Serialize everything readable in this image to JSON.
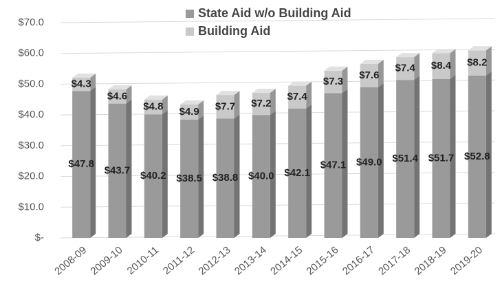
{
  "chart_data": {
    "type": "bar",
    "stacked": true,
    "categories": [
      "2008-09",
      "2009-10",
      "2010-11",
      "2011-12",
      "2012-13",
      "2013-14",
      "2014-15",
      "2015-16",
      "2016-17",
      "2017-18",
      "2018-19",
      "2019-20"
    ],
    "series": [
      {
        "name": "State Aid w/o Building Aid",
        "color": "#9a9a9a",
        "values": [
          47.8,
          43.7,
          40.2,
          38.5,
          38.8,
          40.0,
          42.1,
          47.1,
          49.0,
          51.4,
          51.7,
          52.8
        ],
        "value_labels": [
          "$47.8",
          "$43.7",
          "$40.2",
          "$38.5",
          "$38.8",
          "$40.0",
          "$42.1",
          "$47.1",
          "$49.0",
          "$51.4",
          "$51.7",
          "$52.8"
        ]
      },
      {
        "name": "Building Aid",
        "color": "#c9c9c9",
        "values": [
          4.3,
          4.6,
          4.8,
          4.9,
          7.7,
          7.2,
          7.4,
          7.3,
          7.6,
          7.4,
          8.4,
          8.2
        ],
        "value_labels": [
          "$4.3",
          "$4.6",
          "$4.8",
          "$4.9",
          "$7.7",
          "$7.2",
          "$7.4",
          "$7.3",
          "$7.6",
          "$7.4",
          "$8.4",
          "$8.2"
        ]
      }
    ],
    "ylim": [
      0,
      70
    ],
    "yticks": [
      {
        "value": 0,
        "label": "$-"
      },
      {
        "value": 10,
        "label": "$10.0"
      },
      {
        "value": 20,
        "label": "$20.0"
      },
      {
        "value": 30,
        "label": "$30.0"
      },
      {
        "value": 40,
        "label": "$40.0"
      },
      {
        "value": 50,
        "label": "$50.0"
      },
      {
        "value": 60,
        "label": "$60.0"
      },
      {
        "value": 70,
        "label": "$70.0"
      }
    ],
    "grid": true,
    "legend": "top"
  }
}
